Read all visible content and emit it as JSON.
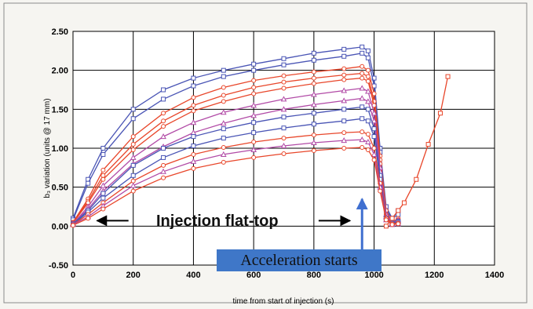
{
  "chart_data": {
    "type": "line",
    "title": "",
    "xlabel": "time from start of injection (s)",
    "ylabel": "b₃ variation  (units @ 17 mm)",
    "xlim": [
      0,
      1400
    ],
    "ylim": [
      -0.5,
      2.5
    ],
    "xticks": [
      "0",
      "200",
      "400",
      "600",
      "800",
      "1000",
      "1200",
      "1400"
    ],
    "yticks": [
      "2.50",
      "2.00",
      "1.50",
      "1.00",
      "0.50",
      "0.00",
      "-0.50"
    ],
    "grid": true,
    "colors": {
      "red": "#e8462a",
      "blue": "#4a55b5",
      "magenta": "#b14aa6"
    },
    "series": [
      {
        "color": "blue",
        "marker": "square",
        "values": [
          [
            0,
            0.1
          ],
          [
            50,
            0.6
          ],
          [
            100,
            1.0
          ],
          [
            200,
            1.5
          ],
          [
            300,
            1.75
          ],
          [
            400,
            1.9
          ],
          [
            500,
            2.0
          ],
          [
            600,
            2.08
          ],
          [
            700,
            2.15
          ],
          [
            800,
            2.22
          ],
          [
            900,
            2.27
          ],
          [
            960,
            2.3
          ],
          [
            980,
            2.25
          ],
          [
            1000,
            1.9
          ],
          [
            1020,
            1.0
          ],
          [
            1040,
            0.25
          ],
          [
            1060,
            0.1
          ],
          [
            1080,
            0.2
          ]
        ]
      },
      {
        "color": "blue",
        "marker": "square",
        "values": [
          [
            0,
            0.08
          ],
          [
            50,
            0.55
          ],
          [
            100,
            0.92
          ],
          [
            200,
            1.38
          ],
          [
            300,
            1.63
          ],
          [
            400,
            1.8
          ],
          [
            500,
            1.92
          ],
          [
            600,
            2.0
          ],
          [
            700,
            2.07
          ],
          [
            800,
            2.13
          ],
          [
            900,
            2.18
          ],
          [
            960,
            2.22
          ],
          [
            980,
            2.16
          ],
          [
            1000,
            1.8
          ],
          [
            1020,
            0.95
          ],
          [
            1040,
            0.2
          ],
          [
            1060,
            0.1
          ],
          [
            1080,
            0.15
          ]
        ]
      },
      {
        "color": "red",
        "marker": "circle",
        "values": [
          [
            0,
            0.05
          ],
          [
            50,
            0.35
          ],
          [
            100,
            0.72
          ],
          [
            200,
            1.15
          ],
          [
            300,
            1.45
          ],
          [
            400,
            1.65
          ],
          [
            500,
            1.78
          ],
          [
            600,
            1.87
          ],
          [
            700,
            1.93
          ],
          [
            800,
            1.98
          ],
          [
            900,
            2.02
          ],
          [
            960,
            2.05
          ],
          [
            980,
            2.0
          ],
          [
            1000,
            1.7
          ],
          [
            1020,
            0.9
          ],
          [
            1040,
            0.2
          ],
          [
            1060,
            0.05
          ],
          [
            1080,
            0.1
          ]
        ]
      },
      {
        "color": "red",
        "marker": "circle",
        "values": [
          [
            0,
            0.05
          ],
          [
            50,
            0.32
          ],
          [
            100,
            0.65
          ],
          [
            200,
            1.05
          ],
          [
            300,
            1.35
          ],
          [
            400,
            1.55
          ],
          [
            500,
            1.68
          ],
          [
            600,
            1.78
          ],
          [
            700,
            1.85
          ],
          [
            800,
            1.9
          ],
          [
            900,
            1.94
          ],
          [
            960,
            1.96
          ],
          [
            980,
            1.92
          ],
          [
            1000,
            1.6
          ],
          [
            1020,
            0.85
          ],
          [
            1040,
            0.15
          ],
          [
            1060,
            0.05
          ],
          [
            1080,
            0.08
          ]
        ]
      },
      {
        "color": "red",
        "marker": "circle",
        "values": [
          [
            0,
            0.04
          ],
          [
            50,
            0.3
          ],
          [
            100,
            0.6
          ],
          [
            200,
            0.98
          ],
          [
            300,
            1.28
          ],
          [
            400,
            1.48
          ],
          [
            500,
            1.6
          ],
          [
            600,
            1.7
          ],
          [
            700,
            1.77
          ],
          [
            800,
            1.83
          ],
          [
            900,
            1.88
          ],
          [
            960,
            1.9
          ],
          [
            980,
            1.86
          ],
          [
            1000,
            1.55
          ],
          [
            1020,
            0.8
          ],
          [
            1040,
            0.15
          ],
          [
            1060,
            0.05
          ],
          [
            1080,
            0.08
          ]
        ]
      },
      {
        "color": "magenta",
        "marker": "triangle",
        "values": [
          [
            0,
            0.03
          ],
          [
            50,
            0.25
          ],
          [
            100,
            0.52
          ],
          [
            200,
            0.88
          ],
          [
            300,
            1.15
          ],
          [
            400,
            1.33
          ],
          [
            500,
            1.46
          ],
          [
            600,
            1.55
          ],
          [
            700,
            1.63
          ],
          [
            800,
            1.69
          ],
          [
            900,
            1.74
          ],
          [
            960,
            1.77
          ],
          [
            980,
            1.73
          ],
          [
            1000,
            1.45
          ],
          [
            1020,
            0.75
          ],
          [
            1040,
            0.15
          ],
          [
            1060,
            0.05
          ],
          [
            1080,
            0.08
          ]
        ]
      },
      {
        "color": "magenta",
        "marker": "triangle",
        "values": [
          [
            0,
            0.03
          ],
          [
            50,
            0.22
          ],
          [
            100,
            0.45
          ],
          [
            200,
            0.8
          ],
          [
            300,
            1.02
          ],
          [
            400,
            1.2
          ],
          [
            500,
            1.32
          ],
          [
            600,
            1.42
          ],
          [
            700,
            1.5
          ],
          [
            800,
            1.56
          ],
          [
            900,
            1.61
          ],
          [
            960,
            1.64
          ],
          [
            980,
            1.6
          ],
          [
            1000,
            1.35
          ],
          [
            1020,
            0.7
          ],
          [
            1040,
            0.12
          ],
          [
            1060,
            0.04
          ],
          [
            1080,
            0.06
          ]
        ]
      },
      {
        "color": "blue",
        "marker": "square",
        "values": [
          [
            0,
            0.03
          ],
          [
            50,
            0.2
          ],
          [
            100,
            0.42
          ],
          [
            200,
            0.78
          ],
          [
            300,
            1.0
          ],
          [
            400,
            1.15
          ],
          [
            500,
            1.25
          ],
          [
            600,
            1.33
          ],
          [
            700,
            1.4
          ],
          [
            800,
            1.45
          ],
          [
            900,
            1.5
          ],
          [
            960,
            1.53
          ],
          [
            980,
            1.5
          ],
          [
            1000,
            1.25
          ],
          [
            1020,
            0.65
          ],
          [
            1040,
            0.1
          ],
          [
            1060,
            0.04
          ],
          [
            1080,
            0.06
          ]
        ]
      },
      {
        "color": "blue",
        "marker": "square",
        "values": [
          [
            0,
            0.02
          ],
          [
            50,
            0.18
          ],
          [
            100,
            0.36
          ],
          [
            200,
            0.65
          ],
          [
            300,
            0.88
          ],
          [
            400,
            1.03
          ],
          [
            500,
            1.13
          ],
          [
            600,
            1.2
          ],
          [
            700,
            1.26
          ],
          [
            800,
            1.31
          ],
          [
            900,
            1.35
          ],
          [
            960,
            1.38
          ],
          [
            980,
            1.35
          ],
          [
            1000,
            1.15
          ],
          [
            1020,
            0.6
          ],
          [
            1040,
            0.1
          ],
          [
            1060,
            0.03
          ],
          [
            1080,
            0.05
          ]
        ]
      },
      {
        "color": "red",
        "marker": "circle",
        "values": [
          [
            0,
            0.02
          ],
          [
            50,
            0.15
          ],
          [
            100,
            0.3
          ],
          [
            200,
            0.58
          ],
          [
            300,
            0.78
          ],
          [
            400,
            0.92
          ],
          [
            500,
            1.01
          ],
          [
            600,
            1.08
          ],
          [
            700,
            1.13
          ],
          [
            800,
            1.17
          ],
          [
            900,
            1.2
          ],
          [
            960,
            1.21
          ],
          [
            980,
            1.18
          ],
          [
            1000,
            1.0
          ],
          [
            1020,
            0.55
          ],
          [
            1040,
            0.1
          ],
          [
            1060,
            0.03
          ],
          [
            1080,
            0.04
          ]
        ]
      },
      {
        "color": "magenta",
        "marker": "triangle",
        "values": [
          [
            0,
            0.02
          ],
          [
            50,
            0.12
          ],
          [
            100,
            0.26
          ],
          [
            200,
            0.52
          ],
          [
            300,
            0.7
          ],
          [
            400,
            0.83
          ],
          [
            500,
            0.92
          ],
          [
            600,
            0.98
          ],
          [
            700,
            1.03
          ],
          [
            800,
            1.07
          ],
          [
            900,
            1.1
          ],
          [
            960,
            1.11
          ],
          [
            980,
            1.08
          ],
          [
            1000,
            0.92
          ],
          [
            1020,
            0.5
          ],
          [
            1040,
            0.08
          ],
          [
            1060,
            0.02
          ],
          [
            1080,
            0.03
          ]
        ]
      },
      {
        "color": "red",
        "marker": "circle",
        "values": [
          [
            0,
            0.01
          ],
          [
            50,
            0.1
          ],
          [
            100,
            0.22
          ],
          [
            200,
            0.45
          ],
          [
            300,
            0.62
          ],
          [
            400,
            0.74
          ],
          [
            500,
            0.82
          ],
          [
            600,
            0.88
          ],
          [
            700,
            0.93
          ],
          [
            800,
            0.97
          ],
          [
            900,
            1.0
          ],
          [
            960,
            1.01
          ],
          [
            980,
            0.98
          ],
          [
            1000,
            0.85
          ],
          [
            1020,
            0.45
          ],
          [
            1040,
            0.08
          ],
          [
            1060,
            0.02
          ],
          [
            1080,
            0.03
          ]
        ]
      },
      {
        "color": "red",
        "marker": "square",
        "values": [
          [
            1040,
            0.0
          ],
          [
            1060,
            0.1
          ],
          [
            1080,
            0.2
          ],
          [
            1100,
            0.3
          ],
          [
            1140,
            0.6
          ],
          [
            1180,
            1.05
          ],
          [
            1220,
            1.45
          ],
          [
            1245,
            1.92
          ]
        ]
      }
    ],
    "annotations": {
      "flat_top_label": "Injection flat-top",
      "flat_top_range": [
        80,
        920
      ],
      "flat_top_y": 0.07,
      "acceleration_label": "Acceleration starts",
      "acceleration_x": 960,
      "acceleration_arrow_top_y": 0.35
    }
  }
}
